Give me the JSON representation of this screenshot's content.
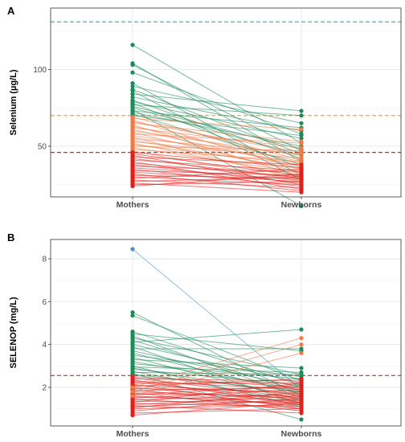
{
  "chart_data": [
    {
      "type": "line",
      "panel": "A",
      "title": "",
      "ylabel": "Selenium (µg/L)",
      "xlabel": "",
      "categories": [
        "Mothers",
        "Newborns"
      ],
      "ylim": [
        17,
        140
      ],
      "yticks": [
        50,
        100
      ],
      "grid": true,
      "reference_lines": [
        {
          "y": 131,
          "color": "#1fb5b0"
        },
        {
          "y": 70,
          "color": "#f2a623"
        },
        {
          "y": 46,
          "color": "#e0201b"
        }
      ],
      "series": [
        {
          "values": [
            116,
            52
          ],
          "color": "#1e8a5b"
        },
        {
          "values": [
            104,
            40
          ],
          "color": "#1e8a5b"
        },
        {
          "values": [
            103,
            47
          ],
          "color": "#1e8a5b"
        },
        {
          "values": [
            98,
            58
          ],
          "color": "#1e8a5b"
        },
        {
          "values": [
            91,
            31
          ],
          "color": "#1e8a5b"
        },
        {
          "values": [
            89,
            65
          ],
          "color": "#1e8a5b"
        },
        {
          "values": [
            87,
            45
          ],
          "color": "#1e8a5b"
        },
        {
          "values": [
            86,
            28
          ],
          "color": "#1e8a5b"
        },
        {
          "values": [
            84,
            73
          ],
          "color": "#1e8a5b"
        },
        {
          "values": [
            82,
            60
          ],
          "color": "#1e8a5b"
        },
        {
          "values": [
            80,
            42
          ],
          "color": "#1e8a5b"
        },
        {
          "values": [
            79,
            55
          ],
          "color": "#1e8a5b"
        },
        {
          "values": [
            78,
            36
          ],
          "color": "#1e8a5b"
        },
        {
          "values": [
            77,
            70
          ],
          "color": "#1e8a5b"
        },
        {
          "values": [
            76,
            48
          ],
          "color": "#1e8a5b"
        },
        {
          "values": [
            75,
            44
          ],
          "color": "#1e8a5b"
        },
        {
          "values": [
            74,
            11
          ],
          "color": "#1e8a5b"
        },
        {
          "values": [
            73,
            62
          ],
          "color": "#1e8a5b"
        },
        {
          "values": [
            72,
            50
          ],
          "color": "#1e8a5b"
        },
        {
          "values": [
            71,
            38
          ],
          "color": "#1e8a5b"
        },
        {
          "values": [
            70,
            57
          ],
          "color": "#1e8a5b"
        },
        {
          "values": [
            69,
            41
          ],
          "color": "#f07a45"
        },
        {
          "values": [
            68,
            61
          ],
          "color": "#f07a45"
        },
        {
          "values": [
            67,
            35
          ],
          "color": "#f07a45"
        },
        {
          "values": [
            66,
            46
          ],
          "color": "#f07a45"
        },
        {
          "values": [
            65,
            53
          ],
          "color": "#f07a45"
        },
        {
          "values": [
            64,
            30
          ],
          "color": "#f07a45"
        },
        {
          "values": [
            63,
            40
          ],
          "color": "#f07a45"
        },
        {
          "values": [
            62,
            49
          ],
          "color": "#f07a45"
        },
        {
          "values": [
            61,
            37
          ],
          "color": "#f07a45"
        },
        {
          "values": [
            60,
            44
          ],
          "color": "#f07a45"
        },
        {
          "values": [
            59,
            33
          ],
          "color": "#f07a45"
        },
        {
          "values": [
            58,
            52
          ],
          "color": "#f07a45"
        },
        {
          "values": [
            57,
            39
          ],
          "color": "#f07a45"
        },
        {
          "values": [
            56,
            28
          ],
          "color": "#f07a45"
        },
        {
          "values": [
            55,
            45
          ],
          "color": "#f07a45"
        },
        {
          "values": [
            54,
            35
          ],
          "color": "#f07a45"
        },
        {
          "values": [
            53,
            42
          ],
          "color": "#f07a45"
        },
        {
          "values": [
            52,
            30
          ],
          "color": "#f07a45"
        },
        {
          "values": [
            51,
            38
          ],
          "color": "#f07a45"
        },
        {
          "values": [
            50,
            47
          ],
          "color": "#f07a45"
        },
        {
          "values": [
            49,
            33
          ],
          "color": "#f07a45"
        },
        {
          "values": [
            48,
            40
          ],
          "color": "#f07a45"
        },
        {
          "values": [
            47,
            27
          ],
          "color": "#f07a45"
        },
        {
          "values": [
            46,
            36
          ],
          "color": "#e0201b"
        },
        {
          "values": [
            45,
            31
          ],
          "color": "#e0201b"
        },
        {
          "values": [
            44,
            25
          ],
          "color": "#e0201b"
        },
        {
          "values": [
            43,
            38
          ],
          "color": "#e0201b"
        },
        {
          "values": [
            42,
            29
          ],
          "color": "#e0201b"
        },
        {
          "values": [
            41,
            34
          ],
          "color": "#e0201b"
        },
        {
          "values": [
            40,
            22
          ],
          "color": "#e0201b"
        },
        {
          "values": [
            39,
            30
          ],
          "color": "#e0201b"
        },
        {
          "values": [
            38,
            26
          ],
          "color": "#e0201b"
        },
        {
          "values": [
            37,
            33
          ],
          "color": "#e0201b"
        },
        {
          "values": [
            36,
            28
          ],
          "color": "#e0201b"
        },
        {
          "values": [
            35,
            24
          ],
          "color": "#e0201b"
        },
        {
          "values": [
            34,
            31
          ],
          "color": "#e0201b"
        },
        {
          "values": [
            33,
            27
          ],
          "color": "#e0201b"
        },
        {
          "values": [
            32,
            21
          ],
          "color": "#e0201b"
        },
        {
          "values": [
            31,
            29
          ],
          "color": "#e0201b"
        },
        {
          "values": [
            30,
            25
          ],
          "color": "#e0201b"
        },
        {
          "values": [
            29,
            35
          ],
          "color": "#e0201b"
        },
        {
          "values": [
            28,
            23
          ],
          "color": "#e0201b"
        },
        {
          "values": [
            27,
            30
          ],
          "color": "#e0201b"
        },
        {
          "values": [
            26,
            20
          ],
          "color": "#e0201b"
        },
        {
          "values": [
            25,
            27
          ],
          "color": "#e0201b"
        },
        {
          "values": [
            24,
            32
          ],
          "color": "#e0201b"
        }
      ]
    },
    {
      "type": "line",
      "panel": "B",
      "title": "",
      "ylabel": "SELENOP (mg/L)",
      "xlabel": "",
      "categories": [
        "Mothers",
        "Newborns"
      ],
      "ylim": [
        0.2,
        8.9
      ],
      "yticks": [
        2,
        4,
        6,
        8
      ],
      "grid": true,
      "reference_lines": [
        {
          "y": 2.55,
          "color": "#e0201b"
        }
      ],
      "series": [
        {
          "values": [
            8.45,
            1.9
          ],
          "color": "#4a8fbf"
        },
        {
          "values": [
            5.5,
            1.6
          ],
          "color": "#1e8a5b"
        },
        {
          "values": [
            5.35,
            2.3
          ],
          "color": "#1e8a5b"
        },
        {
          "values": [
            4.6,
            2.1
          ],
          "color": "#1e8a5b"
        },
        {
          "values": [
            4.5,
            3.7
          ],
          "color": "#1e8a5b"
        },
        {
          "values": [
            4.4,
            1.5
          ],
          "color": "#1e8a5b"
        },
        {
          "values": [
            4.3,
            2.6
          ],
          "color": "#1e8a5b"
        },
        {
          "values": [
            4.2,
            1.8
          ],
          "color": "#1e8a5b"
        },
        {
          "values": [
            4.1,
            4.7
          ],
          "color": "#1e8a5b"
        },
        {
          "values": [
            4.0,
            2.2
          ],
          "color": "#1e8a5b"
        },
        {
          "values": [
            3.9,
            1.2
          ],
          "color": "#1e8a5b"
        },
        {
          "values": [
            3.8,
            3.8
          ],
          "color": "#1e8a5b"
        },
        {
          "values": [
            3.7,
            2.0
          ],
          "color": "#1e8a5b"
        },
        {
          "values": [
            3.6,
            1.7
          ],
          "color": "#1e8a5b"
        },
        {
          "values": [
            3.5,
            2.5
          ],
          "color": "#1e8a5b"
        },
        {
          "values": [
            3.4,
            1.4
          ],
          "color": "#1e8a5b"
        },
        {
          "values": [
            3.3,
            2.9
          ],
          "color": "#1e8a5b"
        },
        {
          "values": [
            3.2,
            1.9
          ],
          "color": "#1e8a5b"
        },
        {
          "values": [
            3.1,
            2.4
          ],
          "color": "#1e8a5b"
        },
        {
          "values": [
            3.0,
            1.1
          ],
          "color": "#1e8a5b"
        },
        {
          "values": [
            2.95,
            2.7
          ],
          "color": "#1e8a5b"
        },
        {
          "values": [
            2.9,
            1.6
          ],
          "color": "#1e8a5b"
        },
        {
          "values": [
            2.85,
            2.1
          ],
          "color": "#1e8a5b"
        },
        {
          "values": [
            2.75,
            1.3
          ],
          "color": "#1e8a5b"
        },
        {
          "values": [
            2.7,
            2.6
          ],
          "color": "#1e8a5b"
        },
        {
          "values": [
            2.65,
            0.5
          ],
          "color": "#1e8a5b"
        },
        {
          "values": [
            2.6,
            1.8
          ],
          "color": "#1e8a5b"
        },
        {
          "values": [
            2.5,
            2.0
          ],
          "color": "#e0201b"
        },
        {
          "values": [
            2.45,
            1.5
          ],
          "color": "#e0201b"
        },
        {
          "values": [
            2.4,
            2.3
          ],
          "color": "#e0201b"
        },
        {
          "values": [
            2.35,
            1.2
          ],
          "color": "#e0201b"
        },
        {
          "values": [
            2.3,
            1.9
          ],
          "color": "#e0201b"
        },
        {
          "values": [
            2.25,
            1.4
          ],
          "color": "#e0201b"
        },
        {
          "values": [
            2.2,
            2.2
          ],
          "color": "#e0201b"
        },
        {
          "values": [
            2.15,
            1.0
          ],
          "color": "#e0201b"
        },
        {
          "values": [
            2.1,
            1.7
          ],
          "color": "#e0201b"
        },
        {
          "values": [
            2.05,
            2.4
          ],
          "color": "#e0201b"
        },
        {
          "values": [
            2.0,
            1.3
          ],
          "color": "#e0201b"
        },
        {
          "values": [
            1.95,
            1.8
          ],
          "color": "#e0201b"
        },
        {
          "values": [
            1.9,
            1.1
          ],
          "color": "#e0201b"
        },
        {
          "values": [
            1.85,
            2.0
          ],
          "color": "#e0201b"
        },
        {
          "values": [
            1.8,
            1.5
          ],
          "color": "#e0201b"
        },
        {
          "values": [
            1.75,
            0.9
          ],
          "color": "#e0201b"
        },
        {
          "values": [
            1.7,
            1.6
          ],
          "color": "#e0201b"
        },
        {
          "values": [
            1.65,
            2.1
          ],
          "color": "#e0201b"
        },
        {
          "values": [
            1.6,
            1.2
          ],
          "color": "#e0201b"
        },
        {
          "values": [
            1.55,
            1.4
          ],
          "color": "#e0201b"
        },
        {
          "values": [
            1.5,
            1.9
          ],
          "color": "#e0201b"
        },
        {
          "values": [
            1.45,
            1.0
          ],
          "color": "#e0201b"
        },
        {
          "values": [
            1.4,
            1.7
          ],
          "color": "#e0201b"
        },
        {
          "values": [
            1.35,
            1.3
          ],
          "color": "#e0201b"
        },
        {
          "values": [
            1.3,
            2.2
          ],
          "color": "#e0201b"
        },
        {
          "values": [
            1.25,
            1.1
          ],
          "color": "#e0201b"
        },
        {
          "values": [
            1.2,
            1.6
          ],
          "color": "#e0201b"
        },
        {
          "values": [
            1.15,
            0.8
          ],
          "color": "#e0201b"
        },
        {
          "values": [
            1.1,
            1.4
          ],
          "color": "#e0201b"
        },
        {
          "values": [
            1.05,
            1.8
          ],
          "color": "#e0201b"
        },
        {
          "values": [
            1.0,
            1.2
          ],
          "color": "#e0201b"
        },
        {
          "values": [
            0.9,
            1.5
          ],
          "color": "#e0201b"
        },
        {
          "values": [
            0.8,
            1.0
          ],
          "color": "#e0201b"
        },
        {
          "values": [
            0.7,
            1.3
          ],
          "color": "#e0201b"
        },
        {
          "values": [
            2.0,
            4.3
          ],
          "color": "#f07a45"
        },
        {
          "values": [
            1.8,
            4.0
          ],
          "color": "#f07a45"
        },
        {
          "values": [
            1.6,
            3.6
          ],
          "color": "#f07a45"
        }
      ]
    }
  ]
}
